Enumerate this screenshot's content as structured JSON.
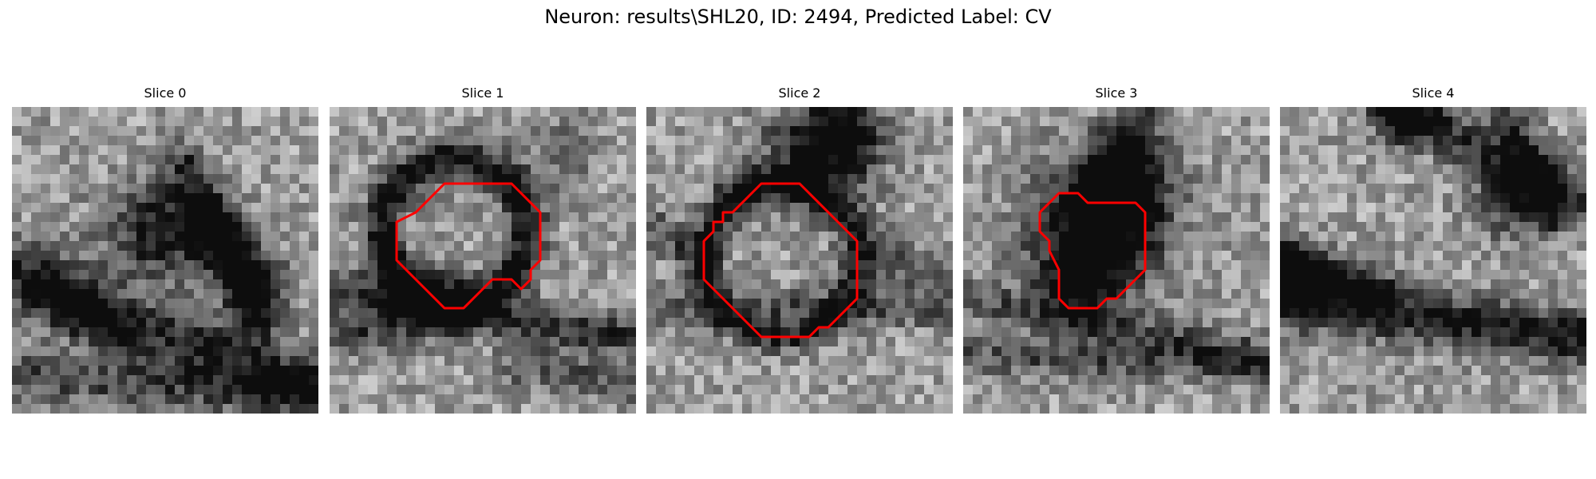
{
  "figure": {
    "title": "Neuron: results\\SHL20, ID: 2494, Predicted Label: CV"
  },
  "panels": [
    {
      "title": "Slice 0",
      "contour": false
    },
    {
      "title": "Slice 1",
      "contour": true
    },
    {
      "title": "Slice 2",
      "contour": true
    },
    {
      "title": "Slice 3",
      "contour": true
    },
    {
      "title": "Slice 4",
      "contour": false
    }
  ],
  "colors": {
    "contour": "#ff0000",
    "background": "#ffffff"
  }
}
